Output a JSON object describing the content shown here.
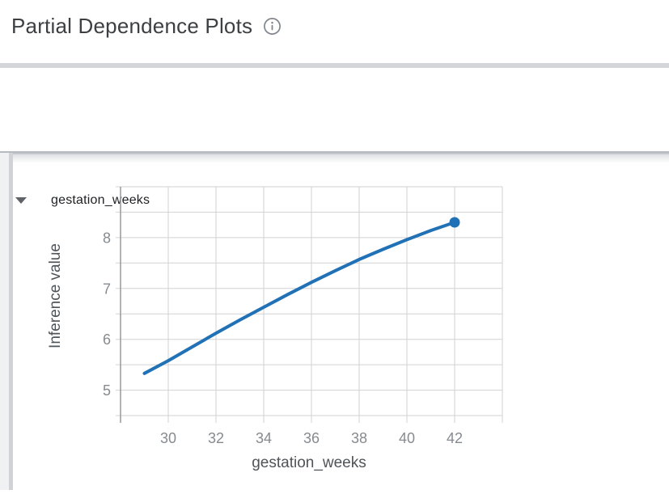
{
  "header": {
    "title": "Partial Dependence Plots",
    "info_icon": "info-icon"
  },
  "expander": {
    "label": "gestation_weeks",
    "state": "expanded",
    "caret_icon": "caret-down-icon"
  },
  "colors": {
    "line": "#2071b5",
    "grid": "#d2d2d2",
    "axis": "#97999c",
    "tick_label": "#868b90",
    "axis_title": "#4f5459",
    "divider": "#d4d5d9",
    "shadow": "#b7bbc0",
    "rail_bg": "#f0f1f3",
    "rail_strip": "#d0d2d6",
    "title_text": "#3c4043",
    "icon_gray": "#80868b",
    "icon_dark": "#5f6368"
  },
  "chart_data": {
    "type": "line",
    "title": "",
    "xlabel": "gestation_weeks",
    "ylabel": "Inference value",
    "x": [
      29,
      30,
      31,
      32,
      33,
      34,
      35,
      36,
      37,
      38,
      39,
      40,
      41,
      42
    ],
    "y": [
      5.33,
      5.58,
      5.85,
      6.12,
      6.38,
      6.63,
      6.88,
      7.12,
      7.35,
      7.57,
      7.77,
      7.96,
      8.14,
      8.3
    ],
    "xlim": [
      28,
      44
    ],
    "ylim": [
      4.5,
      9.0
    ],
    "xticks": [
      30,
      32,
      34,
      36,
      38,
      40,
      42
    ],
    "yticks": [
      5,
      6,
      7,
      8
    ],
    "x_grid_step": 2,
    "y_grid_step": 0.5,
    "grid": true,
    "legend_position": "none",
    "endpoint_marker": true
  }
}
